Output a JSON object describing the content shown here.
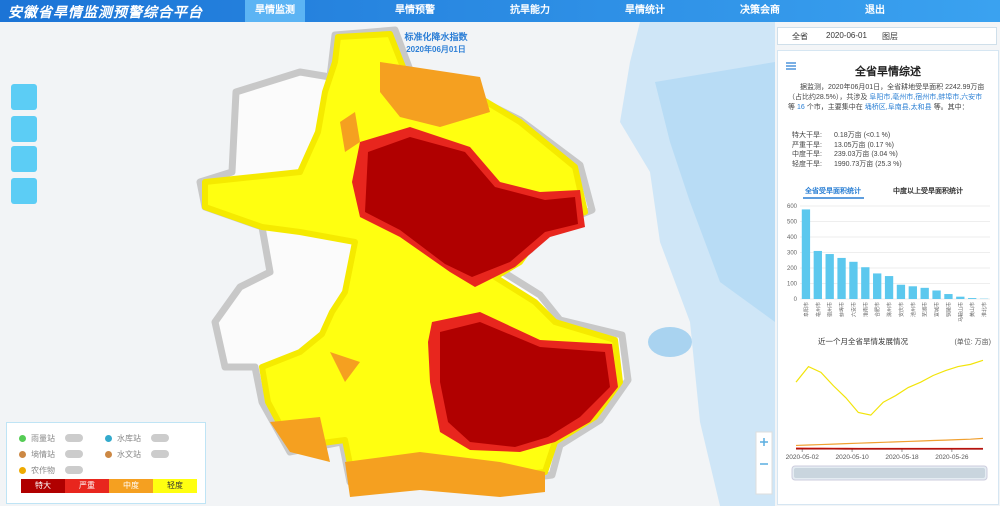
{
  "header": {
    "title": "安徽省旱情监测预警综合平台",
    "nav": [
      "旱情监测",
      "旱情预警",
      "抗旱能力",
      "旱情统计",
      "决策会商",
      "退出"
    ]
  },
  "map": {
    "title": "标准化降水指数",
    "date": "2020年06月01日"
  },
  "legend": {
    "stations": [
      "雨量站",
      "水库站",
      "墒情站",
      "水文站",
      "农作物"
    ],
    "levels": [
      {
        "name": "特大",
        "color": "#b00000"
      },
      {
        "name": "严重",
        "color": "#e8261e"
      },
      {
        "name": "中度",
        "color": "#f5a020"
      },
      {
        "name": "轻度",
        "color": "#ffff10"
      }
    ]
  },
  "panel": {
    "toolbar": [
      "全省",
      "2020-06-01",
      "图层"
    ],
    "title": "全省旱情综述",
    "summary": [
      "据监测，2020年06月01日，全省耕地受旱面积 2242.99万亩（占比约28.5%），共涉及",
      "阜阳市,亳州市,宿州市,蚌埠市,六安市",
      "等",
      "16",
      "个市，主要集中在",
      "埇桥区,阜南县,太和县",
      "等。其中："
    ],
    "stats": [
      [
        "特大干旱:",
        "0.18万亩 (<0.1 %)"
      ],
      [
        "严重干旱:",
        "13.05万亩 (0.17 %)"
      ],
      [
        "中度干旱:",
        "239.03万亩 (3.04 %)"
      ],
      [
        "轻度干旱:",
        "1990.73万亩 (25.3 %)"
      ]
    ],
    "tabs": [
      "全省受旱面积统计",
      "中度以上受旱面积统计"
    ]
  },
  "chart_data": [
    {
      "type": "bar",
      "categories": [
        "阜阳市",
        "亳州市",
        "宿州市",
        "蚌埠市",
        "六安市",
        "淮南市",
        "合肥市",
        "滁州市",
        "安庆市",
        "池州市",
        "芜湖市",
        "宣城市",
        "铜陵市",
        "马鞍山市",
        "黄山市",
        "淮北市"
      ],
      "values": [
        578,
        310,
        290,
        265,
        240,
        205,
        165,
        148,
        92,
        82,
        72,
        55,
        32,
        15,
        6,
        2
      ],
      "color": "#5cc8ee",
      "ylim": [
        0,
        600
      ],
      "yticks": [
        0,
        100,
        200,
        300,
        400,
        500,
        600
      ]
    },
    {
      "type": "line",
      "title": "近一个月全省旱情发展情况",
      "unit": "(单位: 万亩)",
      "x": [
        "2020-05-01",
        "2020-05-03",
        "2020-05-05",
        "2020-05-07",
        "2020-05-09",
        "2020-05-11",
        "2020-05-13",
        "2020-05-15",
        "2020-05-17",
        "2020-05-19",
        "2020-05-21",
        "2020-05-23",
        "2020-05-25",
        "2020-05-27",
        "2020-05-29",
        "2020-05-31"
      ],
      "xlim": [
        "2020-05-01",
        "2020-05-31"
      ],
      "xticks": [
        "2020-05-02",
        "2020-05-10",
        "2020-05-18",
        "2020-05-26"
      ],
      "ylim": [
        0,
        2200
      ],
      "series": [
        {
          "name": "轻度",
          "color": "#f2e40a",
          "values": [
            1500,
            1850,
            1720,
            1420,
            1150,
            820,
            760,
            1050,
            1200,
            1380,
            1500,
            1650,
            1760,
            1850,
            1900,
            1990
          ]
        },
        {
          "name": "中度",
          "color": "#f0a030",
          "values": [
            80,
            90,
            100,
            110,
            120,
            130,
            140,
            150,
            160,
            170,
            180,
            190,
            200,
            210,
            220,
            239
          ]
        },
        {
          "name": "严重",
          "color": "#e03020",
          "values": [
            20,
            18,
            16,
            15,
            14,
            13,
            13,
            12,
            12,
            13,
            13,
            13,
            13,
            13,
            13,
            13
          ]
        },
        {
          "name": "特大",
          "color": "#a00000",
          "values": [
            1,
            1,
            1,
            1,
            0.5,
            0.5,
            0.5,
            0.3,
            0.3,
            0.2,
            0.2,
            0.2,
            0.2,
            0.2,
            0.2,
            0.18
          ]
        }
      ]
    }
  ]
}
